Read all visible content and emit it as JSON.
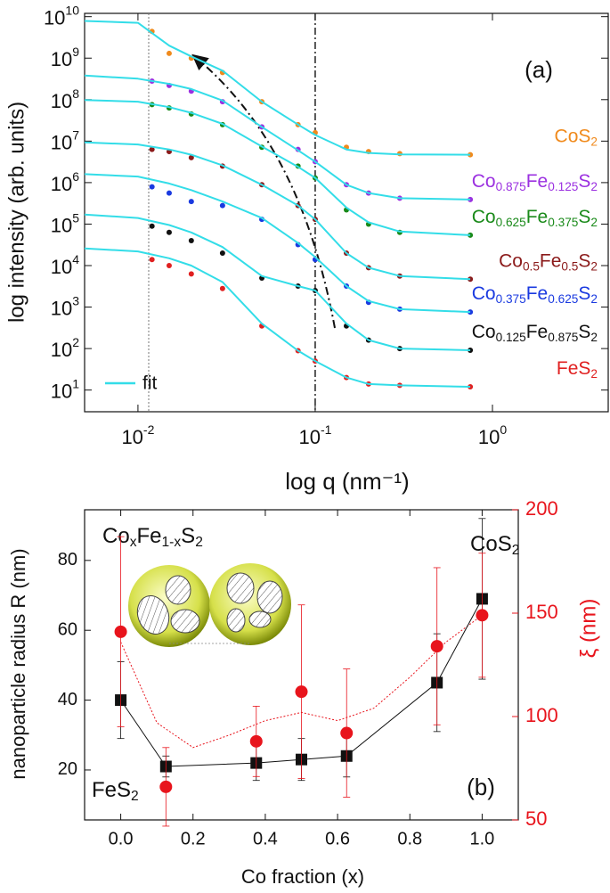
{
  "chart_data": [
    {
      "type": "line",
      "xscale": "log",
      "yscale": "log",
      "annotation": "(a)",
      "xlabel": "log q (nm⁻¹)",
      "ylabel": "log intensity (arb. units)",
      "xlim": [
        0.005,
        4.5
      ],
      "ylim": [
        3,
        12000000000
      ],
      "xticks": [
        {
          "value": 0.01,
          "label": "10^-2"
        },
        {
          "value": 0.1,
          "label": "10^-1"
        },
        {
          "value": 1,
          "label": "10^0"
        }
      ],
      "yticks": [
        {
          "value": 10,
          "label": "10^1"
        },
        {
          "value": 100,
          "label": "10^2"
        },
        {
          "value": 1000,
          "label": "10^3"
        },
        {
          "value": 10000,
          "label": "10^4"
        },
        {
          "value": 100000,
          "label": "10^5"
        },
        {
          "value": 1000000,
          "label": "10^6"
        },
        {
          "value": 10000000,
          "label": "10^7"
        },
        {
          "value": 100000000,
          "label": "10^8"
        },
        {
          "value": 1000000000,
          "label": "10^9"
        },
        {
          "value": 10000000000,
          "label": "10^10"
        }
      ],
      "vlines": [
        0.0115,
        0.1
      ],
      "x": [
        0.012,
        0.015,
        0.02,
        0.03,
        0.05,
        0.08,
        0.1,
        0.15,
        0.2,
        0.3,
        0.75
      ],
      "fit_x": [
        0.005,
        0.01,
        0.015,
        0.02,
        0.03,
        0.05,
        0.08,
        0.1,
        0.15,
        0.2,
        0.3,
        0.75
      ],
      "series": [
        {
          "name": "CoS2",
          "color": "#f08a1c",
          "values": [
            4400000000.0,
            1300000000.0,
            1000000000.0,
            450000000.0,
            89000000.0,
            25000000.0,
            16000000.0,
            7100000.0,
            5600000.0,
            5000000.0,
            4700000.0
          ]
        },
        {
          "name": "Co0.875Fe0.125S2",
          "color": "#9b30e0",
          "values": [
            280000000.0,
            220000000.0,
            160000000.0,
            89000000.0,
            22000000.0,
            6300000.0,
            3200000.0,
            890000.0,
            560000.0,
            420000.0,
            390000.0
          ]
        },
        {
          "name": "Co0.625Fe0.375S2",
          "color": "#1a8a1a",
          "values": [
            76000000.0,
            63000000.0,
            45000000.0,
            25000000.0,
            7100000.0,
            2500000.0,
            1300000.0,
            220000.0,
            100000.0,
            63000.0,
            54000.0
          ]
        },
        {
          "name": "Co0.5Fe0.5S2",
          "color": "#8b1a1a",
          "values": [
            6300000.0,
            5600000.0,
            4000000.0,
            2500000.0,
            890000.0,
            280000.0,
            130000.0,
            20000.0,
            8900.0,
            5600.0,
            4700.0
          ]
        },
        {
          "name": "Co0.375Fe0.625S2",
          "color": "#1a3ae0",
          "values": [
            790000.0,
            560000.0,
            350000.0,
            280000.0,
            130000.0,
            32000.0,
            14000.0,
            3200.0,
            1300.0,
            890,
            760
          ]
        },
        {
          "name": "Co0.125Fe0.875S2",
          "color": "#111111",
          "values": [
            89000.0,
            63000.0,
            40000.0,
            20000.0,
            5000.0,
            3200.0,
            2500.0,
            350,
            160,
            100,
            91
          ]
        },
        {
          "name": "FeS2",
          "color": "#e02020",
          "values": [
            14000.0,
            10000.0,
            6300.0,
            2800.0,
            350,
            89,
            50,
            20,
            14,
            13,
            12
          ]
        }
      ],
      "fit_name": "fit",
      "fit_color": "#33dde8",
      "fits": [
        {
          "values": [
            7900000000.0,
            7100000000.0,
            2000000000.0,
            1100000000.0,
            500000000.0,
            89000000.0,
            25000000.0,
            14000000.0,
            6300000.0,
            5200000.0,
            4800000.0,
            4700000.0
          ]
        },
        {
          "values": [
            380000000.0,
            320000000.0,
            240000000.0,
            180000000.0,
            95000000.0,
            22000000.0,
            6000000.0,
            3200000.0,
            890000.0,
            560000.0,
            420000.0,
            390000.0
          ]
        },
        {
          "values": [
            98000000.0,
            89000000.0,
            66000000.0,
            48000000.0,
            26000000.0,
            7400000.0,
            2400000.0,
            1300000.0,
            250000.0,
            110000.0,
            66000.0,
            54000.0
          ]
        },
        {
          "values": [
            9300000.0,
            8300000.0,
            6300000.0,
            4700000.0,
            2600000.0,
            890000.0,
            280000.0,
            130000.0,
            20000.0,
            8900.0,
            5600.0,
            4700.0
          ]
        },
        {
          "values": [
            1600000.0,
            1400000.0,
            950000.0,
            660000.0,
            350000.0,
            140000.0,
            35000.0,
            16000.0,
            3200.0,
            1400.0,
            890,
            760
          ]
        },
        {
          "values": [
            170000.0,
            140000.0,
            95000.0,
            63000.0,
            28000.0,
            5600.0,
            3200.0,
            2500.0,
            400,
            160,
            100,
            91
          ]
        },
        {
          "values": [
            26000.0,
            22000.0,
            15000.0,
            10000.0,
            4000.0,
            400,
            89,
            50,
            20,
            14,
            13,
            12
          ]
        }
      ]
    },
    {
      "type": "scatter",
      "annotation": "(b)",
      "xlabel": "Co fraction (x)",
      "ylabel": "nanoparticle radius R (nm)",
      "y2label": "ξ (nm)",
      "inset_label": "CoxFe1-xS2",
      "end_labels": [
        "FeS2",
        "CoS2"
      ],
      "xlim": [
        -0.1,
        1.1
      ],
      "ylim": [
        5.7,
        94.5
      ],
      "y2lim": [
        50,
        200
      ],
      "xticks": [
        {
          "value": 0,
          "label": "0.0"
        },
        0.2,
        0.4,
        0.6,
        0.8,
        {
          "value": 1,
          "label": "1.0"
        }
      ],
      "yticks": [
        20,
        40,
        60,
        80
      ],
      "y2ticks": [
        50,
        100,
        150,
        200
      ],
      "x": [
        0,
        0.125,
        0.375,
        0.5,
        0.625,
        0.875,
        1
      ],
      "series": [
        {
          "color": "#111111",
          "marker": "square",
          "line": true,
          "values": [
            40,
            21,
            22,
            23,
            24,
            45,
            69
          ],
          "errors": [
            11,
            3,
            5,
            6,
            6,
            14,
            23
          ]
        },
        {
          "color": "#e8141c",
          "marker": "circle",
          "axis": "y2",
          "values": [
            141,
            66,
            88,
            112,
            92,
            134,
            149
          ],
          "errors": [
            46,
            19,
            17,
            42,
            31,
            38,
            30
          ]
        }
      ],
      "trend": {
        "color": "#e8141c",
        "axis": "y2",
        "x": [
          0,
          0.1,
          0.2,
          0.3,
          0.4,
          0.5,
          0.6,
          0.7,
          0.8,
          0.9,
          1
        ],
        "values": [
          136,
          97,
          85,
          91,
          98,
          102,
          98,
          104,
          119,
          136,
          149
        ]
      }
    }
  ]
}
